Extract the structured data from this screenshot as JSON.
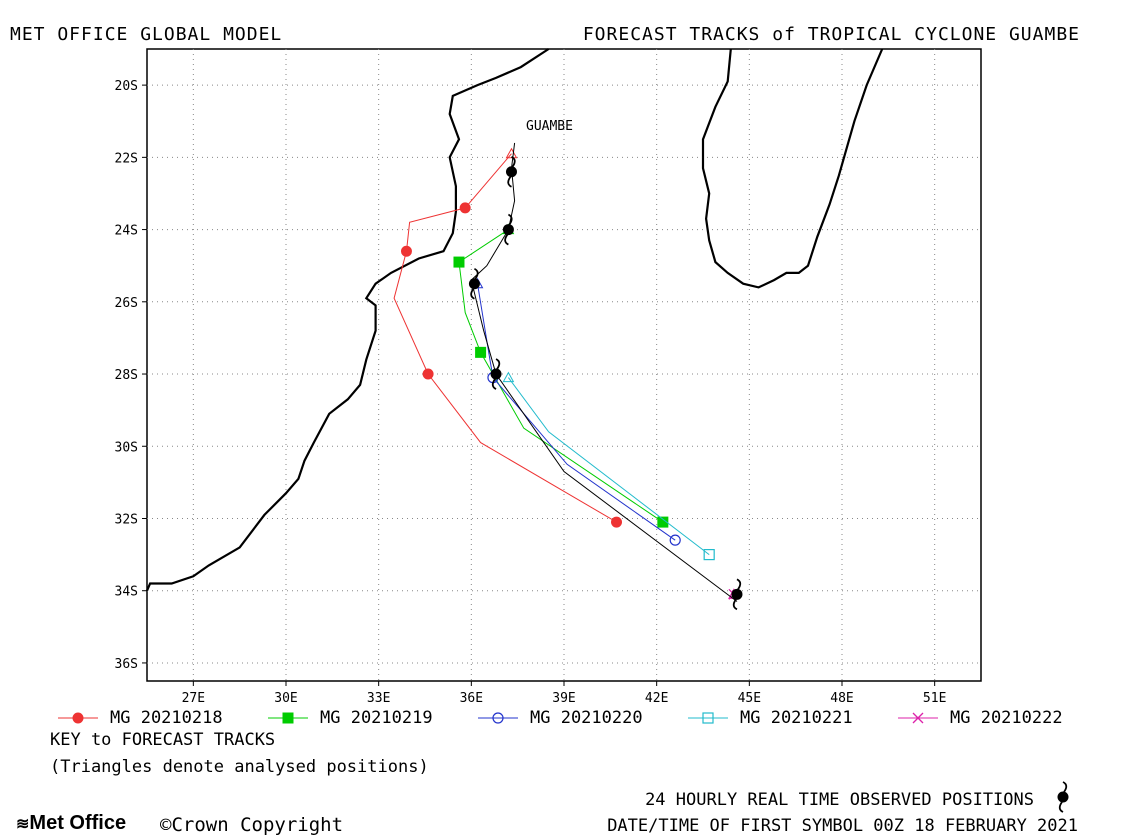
{
  "header": {
    "left": "MET OFFICE GLOBAL MODEL",
    "right": "FORECAST TRACKS of TROPICAL CYCLONE GUAMBE"
  },
  "map": {
    "storm_label": "GUAMBE",
    "lon_range": [
      25.5,
      52.5
    ],
    "lat_range": [
      -36.5,
      -19.0
    ],
    "lon_ticks": [
      "27E",
      "30E",
      "33E",
      "36E",
      "39E",
      "42E",
      "45E",
      "48E",
      "51E"
    ],
    "lat_ticks": [
      "20S",
      "22S",
      "24S",
      "26S",
      "28S",
      "30S",
      "32S",
      "34S",
      "36S"
    ],
    "grid": true
  },
  "chart_data": {
    "type": "line",
    "x_unit": "degrees longitude",
    "y_unit": "degrees latitude (negative = south)",
    "series": [
      {
        "name": "MG 20210218",
        "color": "#ee3333",
        "marker": "filled-circle",
        "points": [
          [
            37.3,
            -21.9
          ],
          [
            35.8,
            -23.4
          ],
          [
            34.0,
            -23.8
          ],
          [
            33.9,
            -24.6
          ],
          [
            33.5,
            -25.9
          ],
          [
            34.6,
            -28.0
          ],
          [
            36.3,
            -29.9
          ],
          [
            40.7,
            -32.1
          ]
        ],
        "marked": [
          [
            35.8,
            -23.4
          ],
          [
            33.9,
            -24.6
          ],
          [
            34.6,
            -28.0
          ],
          [
            40.7,
            -32.1
          ]
        ]
      },
      {
        "name": "MG 20210219",
        "color": "#00cc00",
        "marker": "filled-square",
        "points": [
          [
            37.2,
            -24.0
          ],
          [
            35.6,
            -24.9
          ],
          [
            35.8,
            -26.3
          ],
          [
            36.3,
            -27.4
          ],
          [
            37.7,
            -29.5
          ],
          [
            42.2,
            -32.1
          ]
        ],
        "marked": [
          [
            35.6,
            -24.9
          ],
          [
            36.3,
            -27.4
          ],
          [
            42.2,
            -32.1
          ]
        ]
      },
      {
        "name": "MG 20210220",
        "color": "#2233cc",
        "marker": "open-circle",
        "points": [
          [
            36.2,
            -25.5
          ],
          [
            36.6,
            -27.6
          ],
          [
            36.7,
            -28.1
          ],
          [
            39.1,
            -30.5
          ],
          [
            42.6,
            -32.6
          ]
        ],
        "marked": [
          [
            36.7,
            -28.1
          ],
          [
            42.6,
            -32.6
          ]
        ]
      },
      {
        "name": "MG 20210221",
        "color": "#22bbcc",
        "marker": "open-square",
        "points": [
          [
            37.2,
            -28.1
          ],
          [
            38.5,
            -29.6
          ],
          [
            43.7,
            -33.0
          ]
        ],
        "marked": [
          [
            43.7,
            -33.0
          ]
        ]
      },
      {
        "name": "MG 20210222",
        "color": "#dd22aa",
        "marker": "cross",
        "points": [
          [
            44.5,
            -34.1
          ]
        ],
        "marked": [
          [
            44.5,
            -34.1
          ]
        ]
      }
    ],
    "analysed_positions": [
      {
        "lon": 37.3,
        "lat": -21.9,
        "color": "#ee3333"
      },
      {
        "lon": 37.2,
        "lat": -24.0,
        "color": "#00cc00"
      },
      {
        "lon": 36.2,
        "lat": -25.5,
        "color": "#2233cc"
      },
      {
        "lon": 37.2,
        "lat": -28.1,
        "color": "#22bbcc"
      },
      {
        "lon": 44.5,
        "lat": -34.1,
        "color": "#dd22aa"
      }
    ],
    "observed_track": {
      "color": "#000000",
      "points": [
        [
          37.4,
          -21.6
        ],
        [
          37.3,
          -22.3
        ],
        [
          37.4,
          -23.2
        ],
        [
          37.2,
          -24.0
        ],
        [
          36.5,
          -25.0
        ],
        [
          36.0,
          -25.4
        ],
        [
          36.4,
          -26.8
        ],
        [
          36.8,
          -28.0
        ],
        [
          39.0,
          -30.7
        ],
        [
          44.6,
          -34.3
        ]
      ],
      "symbols": [
        [
          37.3,
          -22.4
        ],
        [
          37.2,
          -24.0
        ],
        [
          36.1,
          -25.5
        ],
        [
          36.8,
          -28.0
        ],
        [
          44.6,
          -34.1
        ]
      ]
    },
    "coastlines": {
      "africa": [
        [
          38.5,
          -19.0
        ],
        [
          37.6,
          -19.5
        ],
        [
          36.8,
          -19.8
        ],
        [
          36.2,
          -20.0
        ],
        [
          35.4,
          -20.3
        ],
        [
          35.3,
          -20.8
        ],
        [
          35.6,
          -21.5
        ],
        [
          35.3,
          -22.0
        ],
        [
          35.5,
          -22.8
        ],
        [
          35.5,
          -23.5
        ],
        [
          35.4,
          -24.1
        ],
        [
          35.1,
          -24.6
        ],
        [
          34.3,
          -24.8
        ],
        [
          33.4,
          -25.2
        ],
        [
          32.9,
          -25.5
        ],
        [
          32.6,
          -25.9
        ],
        [
          32.9,
          -26.1
        ],
        [
          32.9,
          -26.8
        ],
        [
          32.6,
          -27.6
        ],
        [
          32.4,
          -28.3
        ],
        [
          32.0,
          -28.7
        ],
        [
          31.4,
          -29.1
        ],
        [
          30.9,
          -29.9
        ],
        [
          30.6,
          -30.4
        ],
        [
          30.4,
          -30.9
        ],
        [
          30.0,
          -31.3
        ],
        [
          29.3,
          -31.9
        ],
        [
          28.5,
          -32.8
        ],
        [
          27.5,
          -33.3
        ],
        [
          27.0,
          -33.6
        ],
        [
          26.3,
          -33.8
        ],
        [
          25.6,
          -33.8
        ],
        [
          25.5,
          -34.0
        ]
      ],
      "madagascar": [
        [
          49.3,
          -19.0
        ],
        [
          48.8,
          -20.0
        ],
        [
          48.4,
          -21.0
        ],
        [
          48.1,
          -21.9
        ],
        [
          47.9,
          -22.5
        ],
        [
          47.6,
          -23.3
        ],
        [
          47.2,
          -24.2
        ],
        [
          46.9,
          -25.0
        ],
        [
          46.6,
          -25.2
        ],
        [
          46.2,
          -25.2
        ],
        [
          45.8,
          -25.4
        ],
        [
          45.3,
          -25.6
        ],
        [
          44.8,
          -25.5
        ],
        [
          44.3,
          -25.2
        ],
        [
          43.9,
          -24.9
        ],
        [
          43.7,
          -24.3
        ],
        [
          43.6,
          -23.7
        ],
        [
          43.7,
          -23.0
        ],
        [
          43.5,
          -22.3
        ],
        [
          43.5,
          -21.5
        ],
        [
          43.9,
          -20.6
        ],
        [
          44.3,
          -19.9
        ],
        [
          44.4,
          -19.0
        ]
      ]
    }
  },
  "legend": {
    "entries": [
      "MG 20210218",
      "MG 20210219",
      "MG 20210220",
      "MG 20210221",
      "MG 20210222"
    ]
  },
  "key": {
    "title": "KEY to FORECAST TRACKS",
    "note": "(Triangles denote analysed positions)"
  },
  "footer": {
    "observed": "24 HOURLY REAL TIME OBSERVED POSITIONS",
    "datetime": "DATE/TIME OF FIRST SYMBOL 00Z 18 FEBRUARY 2021",
    "logo": "Met Office",
    "copyright": "©Crown Copyright"
  }
}
